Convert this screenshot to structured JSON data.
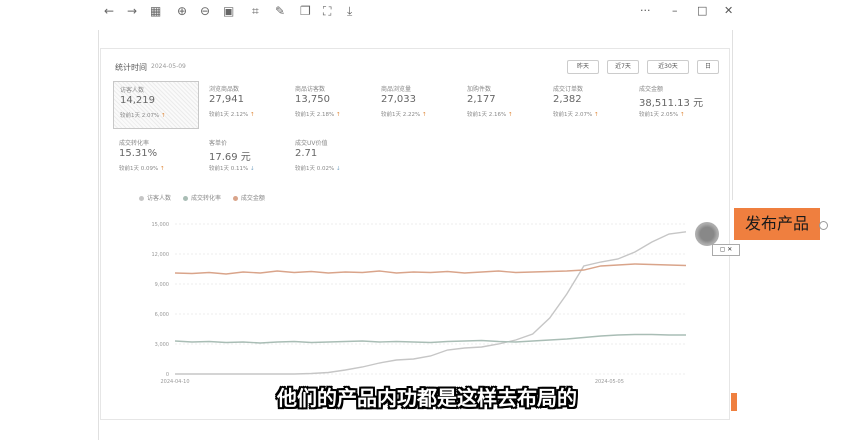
{
  "toolbar": {
    "icons": [
      "arrow-left-icon",
      "arrow-right-icon",
      "grid-icon",
      "zoom-in-icon",
      "zoom-out-icon",
      "fit-icon",
      "crop-icon",
      "edit-icon",
      "copy-icon",
      "scan-icon",
      "save-icon"
    ],
    "glyphs": [
      "←",
      "→",
      "▦",
      "⊕",
      "⊖",
      "▣",
      "⌗",
      "✎",
      "❐",
      "⛶",
      "⤓"
    ],
    "more": "···",
    "minimize": "–",
    "maximize": "□",
    "close": "✕"
  },
  "header": {
    "title": "统计时间",
    "date": "2024-05-09",
    "ranges": [
      "昨天",
      "近7天",
      "近30天",
      "日"
    ]
  },
  "metrics": [
    {
      "label": "访客人数",
      "value": "14,219",
      "compare": "较前1天 2.07%",
      "trend": "up"
    },
    {
      "label": "浏览商品数",
      "value": "27,941",
      "compare": "较前1天 2.12%",
      "trend": "up"
    },
    {
      "label": "商品访客数",
      "value": "13,750",
      "compare": "较前1天 2.18%",
      "trend": "up"
    },
    {
      "label": "商品浏览量",
      "value": "27,033",
      "compare": "较前1天 2.22%",
      "trend": "up"
    },
    {
      "label": "加购件数",
      "value": "2,177",
      "compare": "较前1天 2.16%",
      "trend": "up"
    },
    {
      "label": "成交订单数",
      "value": "2,382",
      "compare": "较前1天 2.07%",
      "trend": "up"
    },
    {
      "label": "成交金额",
      "value": "38,511.13 元",
      "compare": "较前1天 2.05%",
      "trend": "up"
    },
    {
      "label": "成交转化率",
      "value": "15.31%",
      "compare": "较前1天 0.09%",
      "trend": "up"
    },
    {
      "label": "客单价",
      "value": "17.69 元",
      "compare": "较前1天 0.11%",
      "trend": "down"
    },
    {
      "label": "成交UV价值",
      "value": "2.71",
      "compare": "较前1天 0.02%",
      "trend": "down"
    }
  ],
  "chart_data": {
    "type": "line",
    "legend": [
      "访客人数",
      "成交转化率",
      "成交金额"
    ],
    "series_colors": [
      "#c6c6c6",
      "#a9bdb5",
      "#d9a48a"
    ],
    "y_ticks": [
      "0",
      "3,000",
      "6,000",
      "9,000",
      "12,000",
      "15,000"
    ],
    "ylim": [
      0,
      15000
    ],
    "x_ticks": [
      "2024-04-10",
      "2024-05-05"
    ],
    "series": [
      {
        "values": [
          0,
          0,
          0,
          0,
          0,
          0,
          0,
          0,
          50,
          150,
          400,
          700,
          1100,
          1400,
          1500,
          1800,
          2400,
          2600,
          2700,
          3000,
          3400,
          4000,
          5600,
          8000,
          10800,
          11200,
          11500,
          12200,
          13200,
          14000,
          14219
        ]
      },
      {
        "values": [
          3300,
          3200,
          3250,
          3150,
          3200,
          3100,
          3200,
          3250,
          3150,
          3200,
          3250,
          3300,
          3200,
          3250,
          3200,
          3150,
          3250,
          3300,
          3350,
          3250,
          3200,
          3300,
          3400,
          3500,
          3650,
          3800,
          3900,
          3950,
          3950,
          3900,
          3900
        ]
      },
      {
        "values": [
          10100,
          10050,
          10150,
          10000,
          10200,
          10100,
          10300,
          10150,
          10250,
          10100,
          10200,
          10150,
          10300,
          10100,
          10200,
          10150,
          10250,
          10100,
          10200,
          10300,
          10150,
          10200,
          10250,
          10300,
          10400,
          10800,
          10900,
          11000,
          10950,
          10900,
          10850
        ]
      }
    ]
  },
  "action_button": "发布产品",
  "subtitle": "他们的产品内功都是这样去布局的"
}
